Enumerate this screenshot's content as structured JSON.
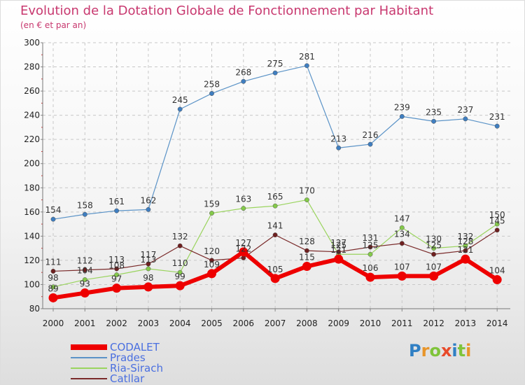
{
  "title": "Evolution de la Dotation Globale de Fonctionnement par Habitant",
  "subtitle": "(en € et par an)",
  "logo": {
    "text": "Proxiti",
    "letter_colors": [
      "#2f7fc4",
      "#e8952a",
      "#7fc43a",
      "#e84a2a",
      "#2f7fc4",
      "#7fc43a",
      "#e8952a"
    ]
  },
  "colors": {
    "title": "#c8386f",
    "legend_text": "#4a6fe0",
    "grid": "#c8c8c8"
  },
  "chart_data": {
    "type": "line",
    "x": [
      "2000",
      "2001",
      "2002",
      "2003",
      "2004",
      "2005",
      "2006",
      "2007",
      "2008",
      "2009",
      "2010",
      "2011",
      "2012",
      "2013",
      "2014"
    ],
    "ylim": [
      80,
      300
    ],
    "yticks": [
      "80",
      "100",
      "120",
      "140",
      "160",
      "180",
      "200",
      "220",
      "240",
      "260",
      "280",
      "300"
    ],
    "grid": true,
    "legend_position": "bottom-left",
    "series": [
      {
        "name": "Prades",
        "color": "#5b93c7",
        "marker": "#3f7ec0",
        "width": 1.2,
        "values": [
          154,
          158,
          161,
          162,
          245,
          258,
          268,
          275,
          281,
          213,
          216,
          239,
          235,
          237,
          231
        ],
        "labels": [
          "154",
          "158",
          "161",
          "162",
          "245",
          "258",
          "268",
          "275",
          "281",
          "213",
          "216",
          "239",
          "235",
          "237",
          "231"
        ]
      },
      {
        "name": "Ria-Sirach",
        "color": "#9ad45e",
        "marker": "#84c94a",
        "width": 1.2,
        "values": [
          98,
          104,
          108,
          113,
          110,
          159,
          163,
          165,
          170,
          125,
          125,
          147,
          130,
          132,
          150
        ],
        "labels": [
          "98",
          "104",
          "108",
          "113",
          "110",
          "159",
          "163",
          "165",
          "170",
          "125",
          "125",
          "147",
          "130",
          "132",
          "150"
        ]
      },
      {
        "name": "Catllar",
        "color": "#7a2a2a",
        "marker": "#6e1f1f",
        "width": 1.2,
        "values": [
          111,
          112,
          113,
          117,
          132,
          120,
          122,
          141,
          128,
          127,
          131,
          134,
          125,
          128,
          145
        ],
        "labels": [
          "111",
          "112",
          "113",
          "117",
          "132",
          "120",
          "122",
          "141",
          "128",
          "127",
          "131",
          "134",
          "125",
          "128",
          "145"
        ]
      },
      {
        "name": "CODALET",
        "color": "#ee0000",
        "marker": "#ee0000",
        "width": 6,
        "values": [
          89,
          93,
          97,
          98,
          99,
          109,
          127,
          105,
          115,
          121,
          106,
          107,
          107,
          121,
          104
        ],
        "labels": [
          "89",
          "93",
          "97",
          "98",
          "99",
          "109",
          "127",
          "105",
          "115",
          "121",
          "106",
          "107",
          "107",
          "121",
          "104"
        ]
      }
    ],
    "legend": [
      "CODALET",
      "Prades",
      "Ria-Sirach",
      "Catllar"
    ]
  }
}
